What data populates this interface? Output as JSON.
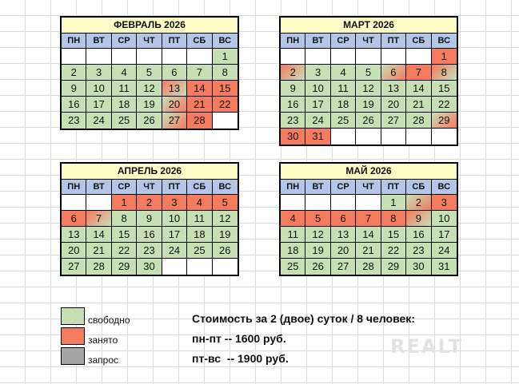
{
  "colors": {
    "free": "#c6e0b4",
    "busy": "#f47b5e",
    "request": "#a6a6a6",
    "header": "#b4c6e7",
    "title": "#fdfcc4"
  },
  "weekdays": [
    "ПН",
    "ВТ",
    "СР",
    "ЧТ",
    "ПТ",
    "СБ",
    "ВС"
  ],
  "calendars": [
    {
      "title": "ФЕВРАЛЬ 2026",
      "cells": [
        [
          "",
          "e"
        ],
        [
          "",
          "e"
        ],
        [
          "",
          "e"
        ],
        [
          "",
          "e"
        ],
        [
          "",
          "e"
        ],
        [
          "",
          "e"
        ],
        [
          "1",
          "f"
        ],
        [
          "2",
          "f"
        ],
        [
          "3",
          "f"
        ],
        [
          "4",
          "f"
        ],
        [
          "5",
          "f"
        ],
        [
          "6",
          "f"
        ],
        [
          "7",
          "f"
        ],
        [
          "8",
          "f"
        ],
        [
          "9",
          "f"
        ],
        [
          "10",
          "f"
        ],
        [
          "11",
          "f"
        ],
        [
          "12",
          "f"
        ],
        [
          "13",
          "bf"
        ],
        [
          "14",
          "b"
        ],
        [
          "15",
          "b"
        ],
        [
          "16",
          "f"
        ],
        [
          "17",
          "f"
        ],
        [
          "18",
          "f"
        ],
        [
          "19",
          "f"
        ],
        [
          "20",
          "fb"
        ],
        [
          "21",
          "b"
        ],
        [
          "22",
          "b"
        ],
        [
          "23",
          "f"
        ],
        [
          "24",
          "f"
        ],
        [
          "25",
          "f"
        ],
        [
          "26",
          "f"
        ],
        [
          "27",
          "fb"
        ],
        [
          "28",
          "b"
        ],
        [
          "",
          "e"
        ]
      ]
    },
    {
      "title": "МАРТ 2026",
      "cells": [
        [
          "",
          "e"
        ],
        [
          "",
          "e"
        ],
        [
          "",
          "e"
        ],
        [
          "",
          "e"
        ],
        [
          "",
          "e"
        ],
        [
          "",
          "e"
        ],
        [
          "1",
          "b"
        ],
        [
          "2",
          "bf"
        ],
        [
          "3",
          "f"
        ],
        [
          "4",
          "f"
        ],
        [
          "5",
          "f"
        ],
        [
          "6",
          "fb"
        ],
        [
          "7",
          "b"
        ],
        [
          "8",
          "bf"
        ],
        [
          "9",
          "f"
        ],
        [
          "10",
          "f"
        ],
        [
          "11",
          "f"
        ],
        [
          "12",
          "f"
        ],
        [
          "13",
          "f"
        ],
        [
          "14",
          "f"
        ],
        [
          "15",
          "f"
        ],
        [
          "16",
          "f"
        ],
        [
          "17",
          "f"
        ],
        [
          "18",
          "f"
        ],
        [
          "19",
          "f"
        ],
        [
          "20",
          "f"
        ],
        [
          "21",
          "f"
        ],
        [
          "22",
          "f"
        ],
        [
          "23",
          "f"
        ],
        [
          "24",
          "f"
        ],
        [
          "25",
          "f"
        ],
        [
          "26",
          "f"
        ],
        [
          "27",
          "f"
        ],
        [
          "28",
          "f"
        ],
        [
          "29",
          "fb"
        ],
        [
          "30",
          "b"
        ],
        [
          "31",
          "b"
        ],
        [
          "",
          "e"
        ],
        [
          "",
          "e"
        ],
        [
          "",
          "e"
        ],
        [
          "",
          "e"
        ],
        [
          "",
          "e"
        ]
      ]
    },
    {
      "title": "АПРЕЛЬ 2026",
      "cells": [
        [
          "",
          "e"
        ],
        [
          "",
          "e"
        ],
        [
          "1",
          "b"
        ],
        [
          "2",
          "b"
        ],
        [
          "3",
          "b"
        ],
        [
          "4",
          "b"
        ],
        [
          "5",
          "b"
        ],
        [
          "6",
          "b"
        ],
        [
          "7",
          "bf"
        ],
        [
          "8",
          "f"
        ],
        [
          "9",
          "f"
        ],
        [
          "10",
          "f"
        ],
        [
          "11",
          "f"
        ],
        [
          "12",
          "f"
        ],
        [
          "13",
          "f"
        ],
        [
          "14",
          "f"
        ],
        [
          "15",
          "f"
        ],
        [
          "16",
          "f"
        ],
        [
          "17",
          "f"
        ],
        [
          "18",
          "f"
        ],
        [
          "19",
          "f"
        ],
        [
          "20",
          "f"
        ],
        [
          "21",
          "f"
        ],
        [
          "22",
          "f"
        ],
        [
          "23",
          "f"
        ],
        [
          "24",
          "f"
        ],
        [
          "25",
          "f"
        ],
        [
          "26",
          "f"
        ],
        [
          "27",
          "f"
        ],
        [
          "28",
          "f"
        ],
        [
          "29",
          "f"
        ],
        [
          "30",
          "f"
        ],
        [
          "",
          "e"
        ],
        [
          "",
          "e"
        ],
        [
          "",
          "e"
        ]
      ]
    },
    {
      "title": "МАЙ 2026",
      "cells": [
        [
          "",
          "e"
        ],
        [
          "",
          "e"
        ],
        [
          "",
          "e"
        ],
        [
          "",
          "e"
        ],
        [
          "1",
          "f"
        ],
        [
          "2",
          "fb"
        ],
        [
          "3",
          "b"
        ],
        [
          "4",
          "b"
        ],
        [
          "5",
          "b"
        ],
        [
          "6",
          "b"
        ],
        [
          "7",
          "b"
        ],
        [
          "8",
          "b"
        ],
        [
          "9",
          "bf"
        ],
        [
          "10",
          "f"
        ],
        [
          "11",
          "f"
        ],
        [
          "12",
          "f"
        ],
        [
          "13",
          "f"
        ],
        [
          "14",
          "f"
        ],
        [
          "15",
          "f"
        ],
        [
          "16",
          "f"
        ],
        [
          "17",
          "f"
        ],
        [
          "18",
          "f"
        ],
        [
          "19",
          "f"
        ],
        [
          "20",
          "f"
        ],
        [
          "21",
          "f"
        ],
        [
          "22",
          "f"
        ],
        [
          "23",
          "f"
        ],
        [
          "24",
          "f"
        ],
        [
          "25",
          "f"
        ],
        [
          "26",
          "f"
        ],
        [
          "27",
          "f"
        ],
        [
          "28",
          "f"
        ],
        [
          "29",
          "f"
        ],
        [
          "30",
          "f"
        ],
        [
          "31",
          "f"
        ]
      ]
    }
  ],
  "legend": {
    "free": "свободно",
    "busy": "занято",
    "request": "запрос"
  },
  "pricing": {
    "title": "Стоимость за 2 (двое) суток / 8 человек:",
    "weekday": "пн-пт -- 1600 руб.",
    "weekend": "пт-вс  -- 1900 руб."
  },
  "watermark": "REALT"
}
